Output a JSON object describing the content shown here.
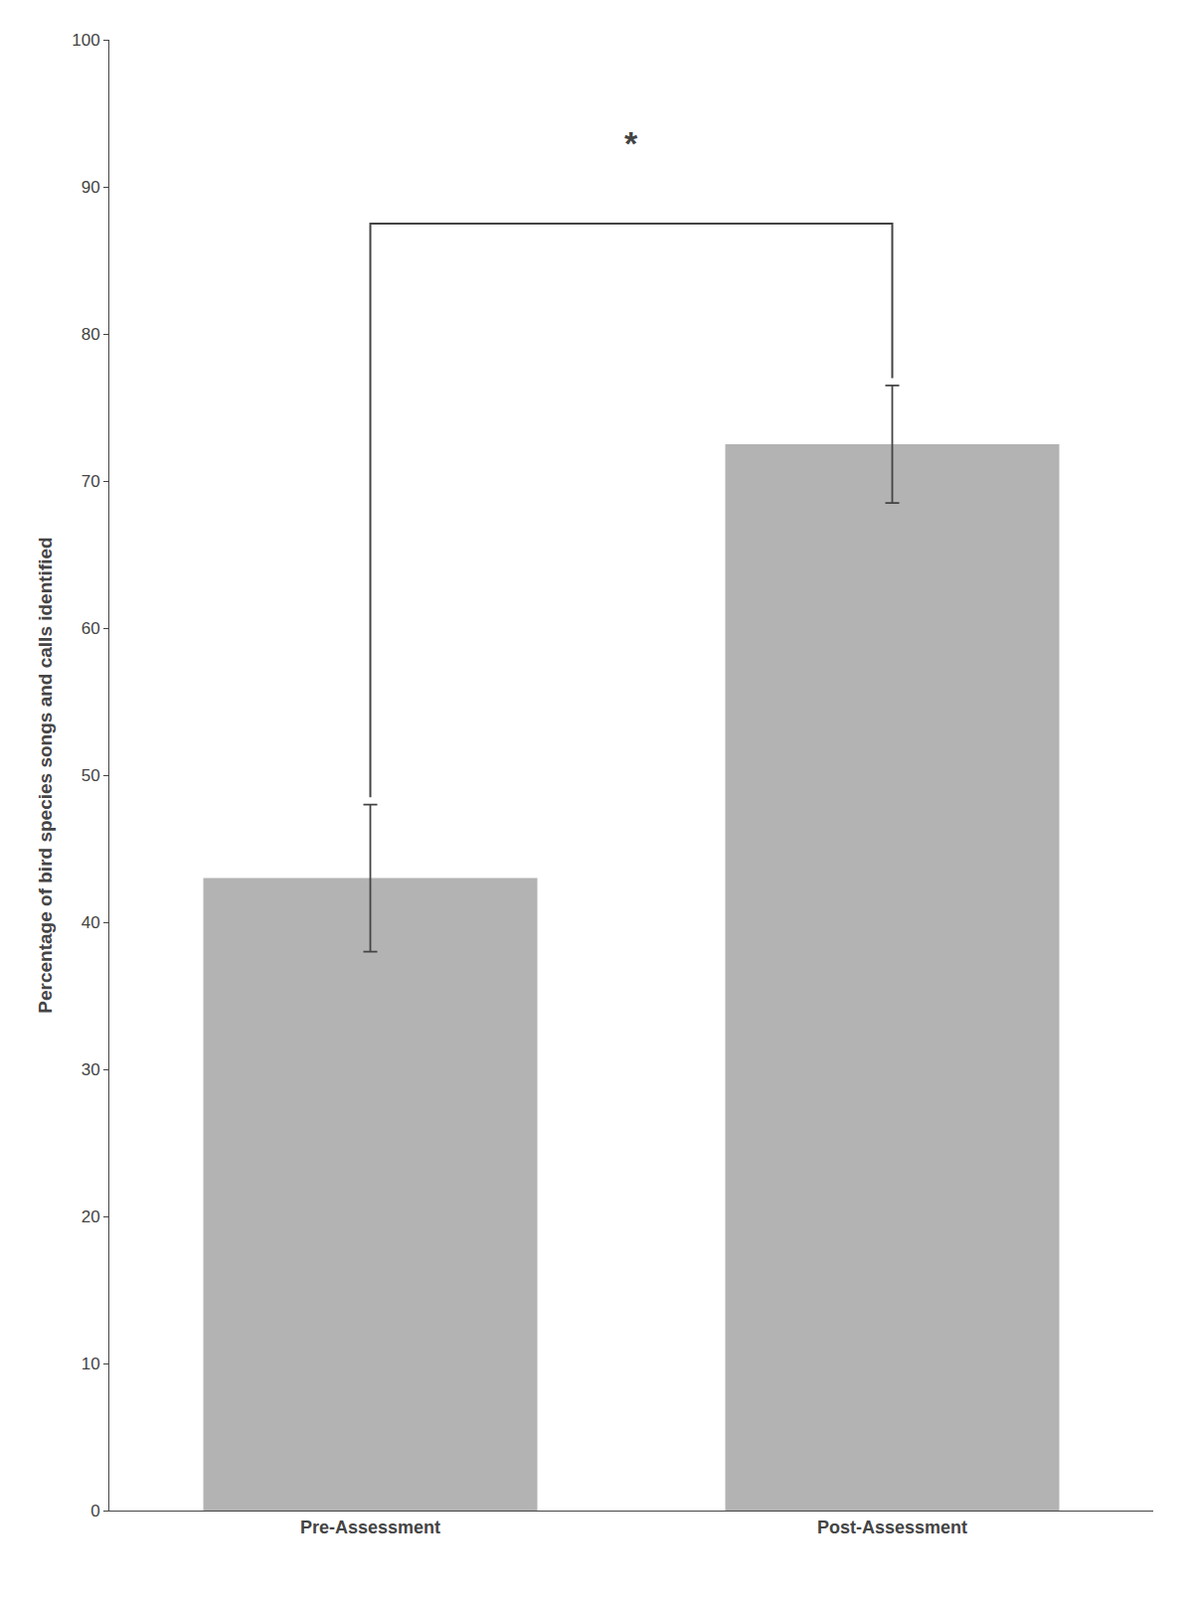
{
  "chart_data": {
    "type": "bar",
    "categories": [
      "Pre-Assessment",
      "Post-Assessment"
    ],
    "values": [
      43.0,
      72.5
    ],
    "errors": [
      5.0,
      4.0
    ],
    "color": "#b3b3b3",
    "ylabel": "Percentage of bird species songs and calls identified",
    "ylim": [
      0,
      100
    ],
    "yticks": [
      0,
      10,
      20,
      30,
      40,
      50,
      60,
      70,
      80,
      90,
      100
    ],
    "grid": false,
    "annotations": [
      {
        "text": "*",
        "x": [
          "Pre-Assessment",
          "Post-Assessment"
        ],
        "y": 93,
        "bracket_y": 87.5,
        "bracket_starts": [
          48.5,
          77.0
        ]
      }
    ]
  }
}
